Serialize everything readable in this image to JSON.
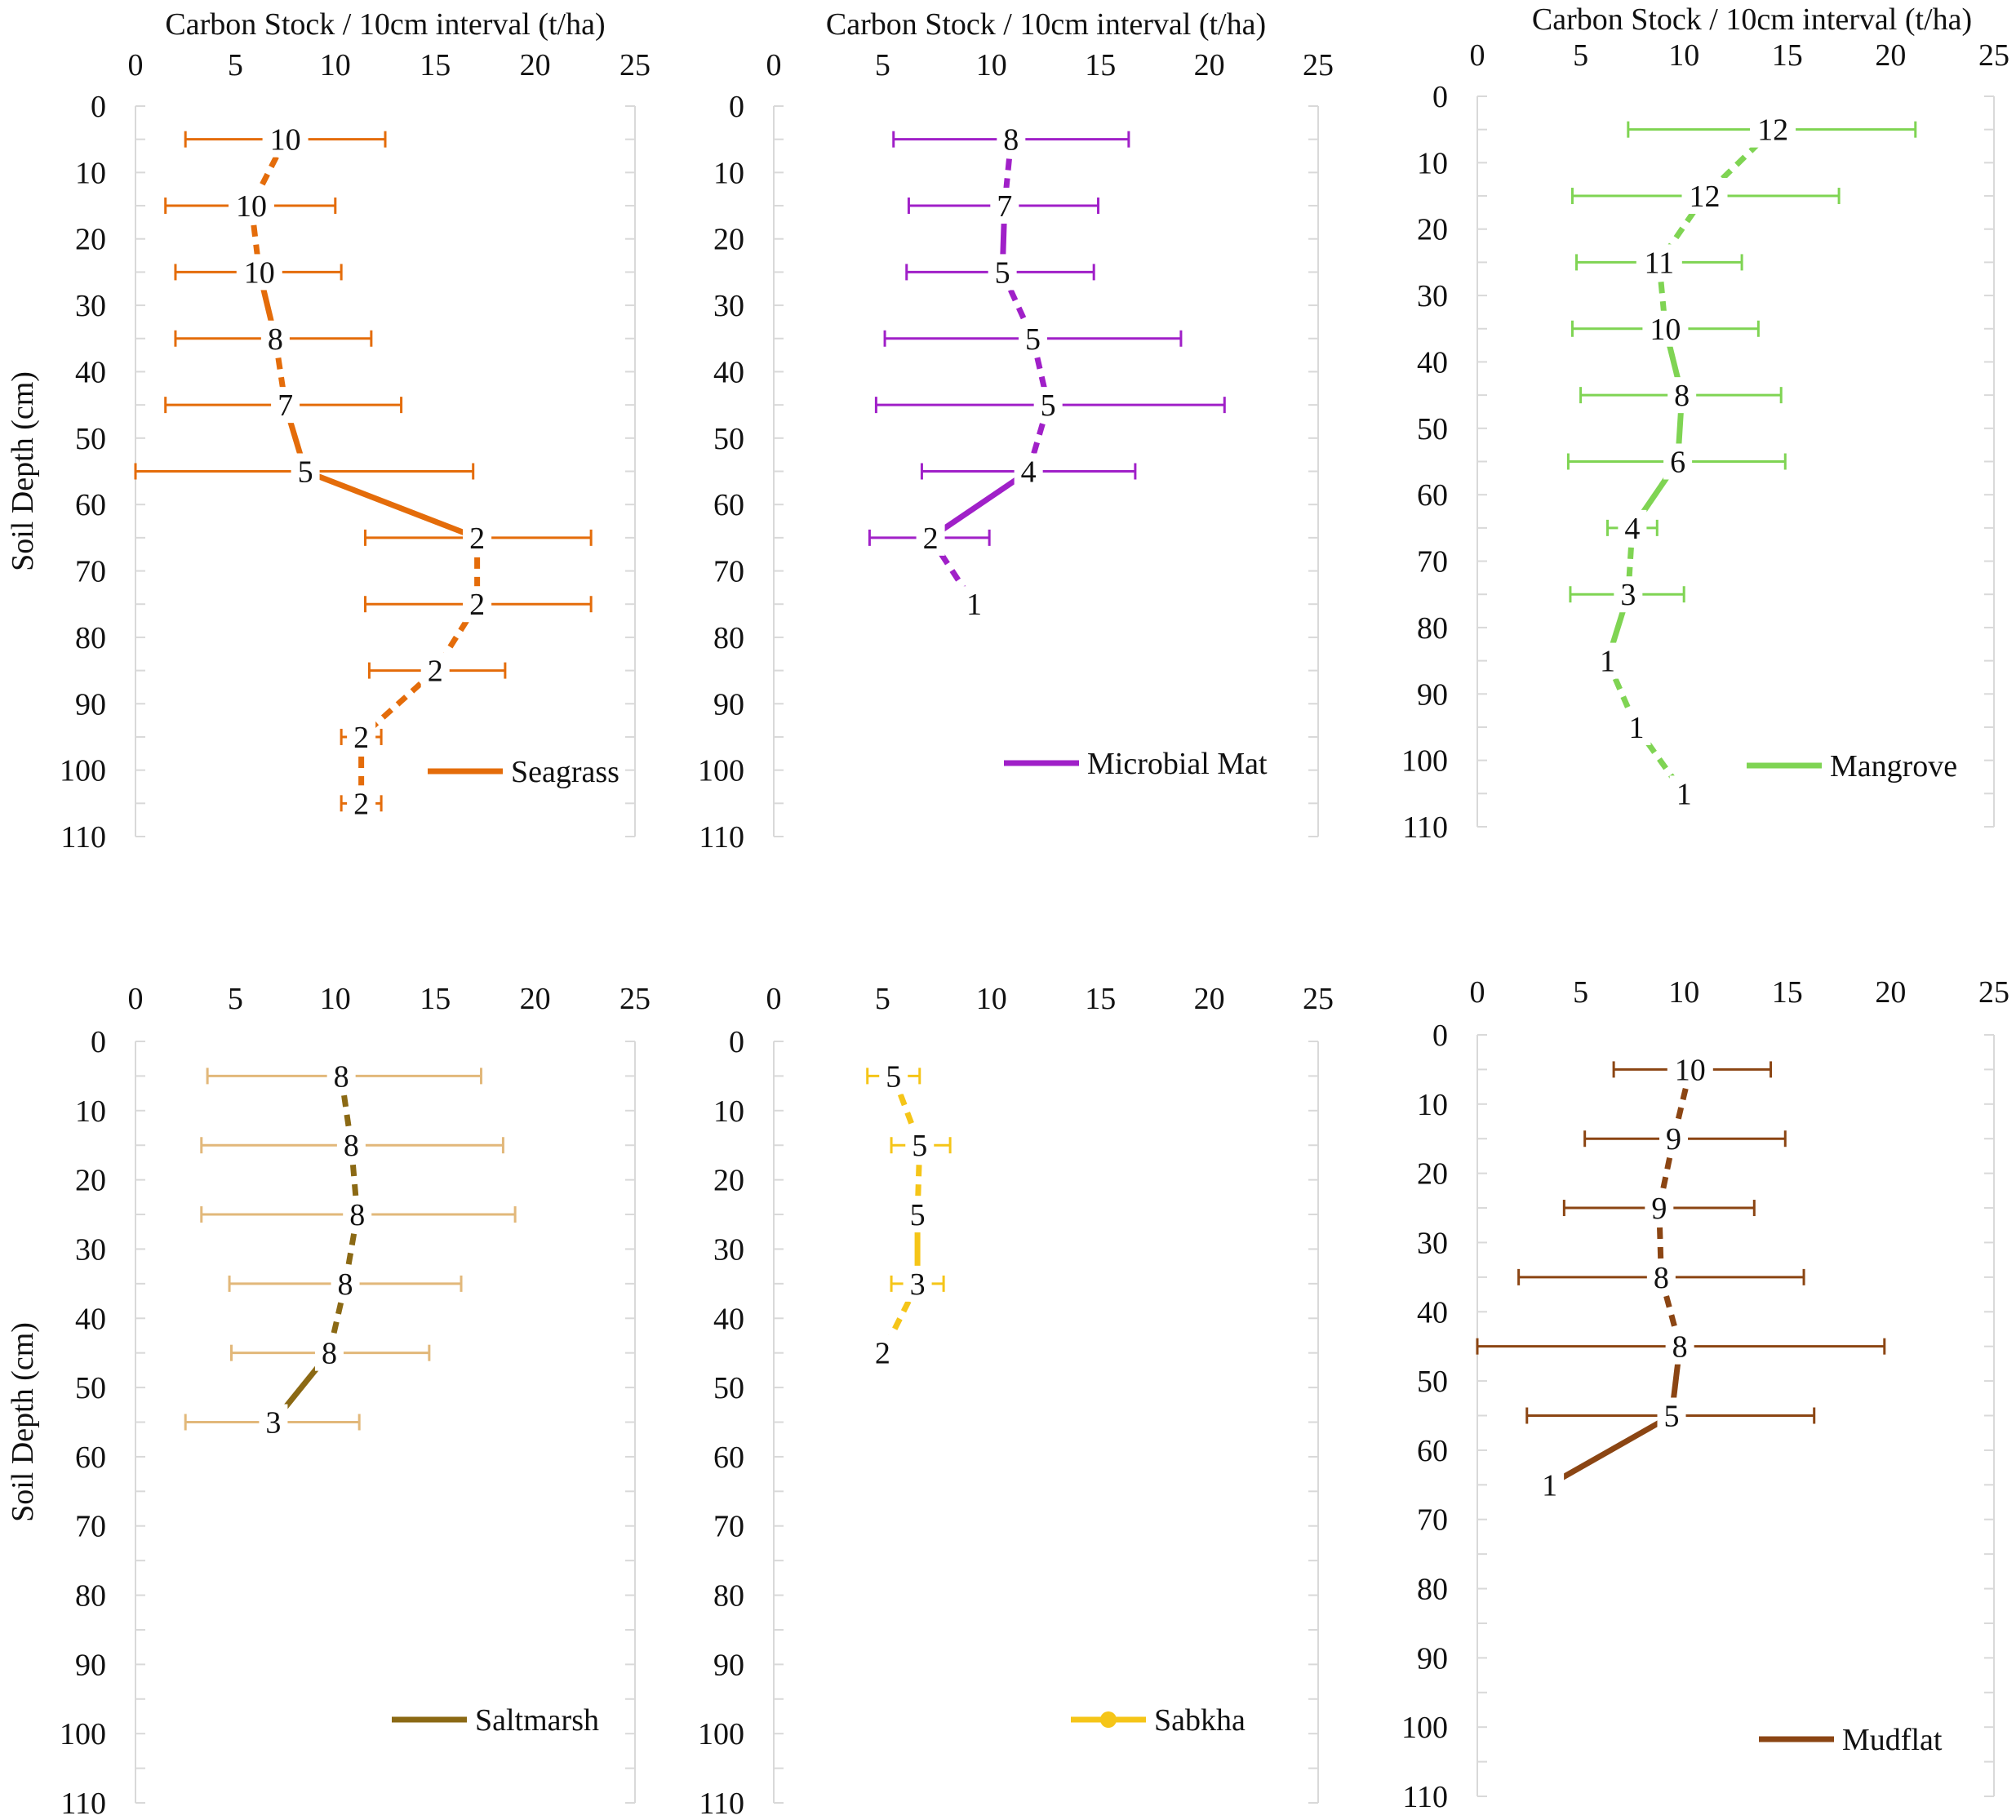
{
  "chart_data": [
    {
      "type": "line",
      "panel": "top-left",
      "title": "",
      "xlabel": "Carbon Stock / 10cm interval (t/ha)",
      "ylabel": "Soil Depth (cm)",
      "xlim": [
        0,
        25
      ],
      "ylim": [
        0,
        110
      ],
      "xticks": [
        "0",
        "5",
        "10",
        "15",
        "20",
        "25"
      ],
      "yticks": [
        "0",
        "10",
        "20",
        "30",
        "40",
        "50",
        "60",
        "70",
        "80",
        "90",
        "100",
        "110"
      ],
      "legend": {
        "label": "Seagrass",
        "position": "bottom-right"
      },
      "color": "#E46C0A",
      "points": [
        {
          "depth": 5,
          "value": 7.5,
          "err_low": 2.5,
          "err_high": 12.5,
          "n": "10"
        },
        {
          "depth": 15,
          "value": 5.8,
          "err_low": 1.5,
          "err_high": 10.0,
          "n": "10"
        },
        {
          "depth": 25,
          "value": 6.2,
          "err_low": 2.0,
          "err_high": 10.3,
          "n": "10"
        },
        {
          "depth": 35,
          "value": 7.0,
          "err_low": 2.0,
          "err_high": 11.8,
          "n": "8"
        },
        {
          "depth": 45,
          "value": 7.5,
          "err_low": 1.5,
          "err_high": 13.3,
          "n": "7"
        },
        {
          "depth": 55,
          "value": 8.5,
          "err_low": 0.0,
          "err_high": 16.9,
          "n": "5"
        },
        {
          "depth": 65,
          "value": 17.1,
          "err_low": 11.5,
          "err_high": 22.8,
          "n": "2"
        },
        {
          "depth": 75,
          "value": 17.1,
          "err_low": 11.5,
          "err_high": 22.8,
          "n": "2"
        },
        {
          "depth": 85,
          "value": 15.0,
          "err_low": 11.7,
          "err_high": 18.5,
          "n": "2"
        },
        {
          "depth": 95,
          "value": 11.3,
          "err_low": 10.3,
          "err_high": 12.3,
          "n": "2"
        },
        {
          "depth": 105,
          "value": 11.3,
          "err_low": 10.3,
          "err_high": 12.3,
          "n": "2"
        }
      ]
    },
    {
      "type": "line",
      "panel": "top-middle",
      "title": "",
      "xlabel": "Carbon Stock / 10cm interval (t/ha)",
      "ylabel": "",
      "xlim": [
        0,
        25
      ],
      "ylim": [
        0,
        110
      ],
      "xticks": [
        "0",
        "5",
        "10",
        "15",
        "20",
        "25"
      ],
      "yticks": [
        "0",
        "10",
        "20",
        "30",
        "40",
        "50",
        "60",
        "70",
        "80",
        "90",
        "100",
        "110"
      ],
      "legend": {
        "label": "Microbial Mat",
        "position": "bottom-right"
      },
      "color": "#A020C8",
      "points": [
        {
          "depth": 5,
          "value": 10.9,
          "err_low": 5.5,
          "err_high": 16.3,
          "n": "8"
        },
        {
          "depth": 15,
          "value": 10.6,
          "err_low": 6.2,
          "err_high": 14.9,
          "n": "7"
        },
        {
          "depth": 25,
          "value": 10.5,
          "err_low": 6.1,
          "err_high": 14.7,
          "n": "5"
        },
        {
          "depth": 35,
          "value": 11.9,
          "err_low": 5.1,
          "err_high": 18.7,
          "n": "5"
        },
        {
          "depth": 45,
          "value": 12.6,
          "err_low": 4.7,
          "err_high": 20.7,
          "n": "5"
        },
        {
          "depth": 55,
          "value": 11.7,
          "err_low": 6.8,
          "err_high": 16.6,
          "n": "4"
        },
        {
          "depth": 65,
          "value": 7.2,
          "err_low": 4.4,
          "err_high": 9.9,
          "n": "2"
        },
        {
          "depth": 75,
          "value": 9.2,
          "n": "1"
        }
      ]
    },
    {
      "type": "line",
      "panel": "top-right",
      "title": "",
      "xlabel": "Carbon Stock / 10cm interval (t/ha)",
      "ylabel": "",
      "xlim": [
        0,
        25
      ],
      "ylim": [
        0,
        110
      ],
      "xticks": [
        "0",
        "5",
        "10",
        "15",
        "20",
        "25"
      ],
      "yticks": [
        "0",
        "10",
        "20",
        "30",
        "40",
        "50",
        "60",
        "70",
        "80",
        "90",
        "100",
        "110"
      ],
      "legend": {
        "label": "Mangrove",
        "position": "bottom-right"
      },
      "color": "#7FD453",
      "points": [
        {
          "depth": 5,
          "value": 14.3,
          "err_low": 7.3,
          "err_high": 21.2,
          "n": "12"
        },
        {
          "depth": 15,
          "value": 11.0,
          "err_low": 4.6,
          "err_high": 17.5,
          "n": "12"
        },
        {
          "depth": 25,
          "value": 8.8,
          "err_low": 4.8,
          "err_high": 12.8,
          "n": "11"
        },
        {
          "depth": 35,
          "value": 9.1,
          "err_low": 4.6,
          "err_high": 13.6,
          "n": "10"
        },
        {
          "depth": 45,
          "value": 9.9,
          "err_low": 5.0,
          "err_high": 14.7,
          "n": "8"
        },
        {
          "depth": 55,
          "value": 9.7,
          "err_low": 4.4,
          "err_high": 14.9,
          "n": "6"
        },
        {
          "depth": 65,
          "value": 7.5,
          "err_low": 6.3,
          "err_high": 8.7,
          "n": "4"
        },
        {
          "depth": 75,
          "value": 7.3,
          "err_low": 4.5,
          "err_high": 10.0,
          "n": "3"
        },
        {
          "depth": 85,
          "value": 6.3,
          "n": "1"
        },
        {
          "depth": 95,
          "value": 7.7,
          "n": "1"
        },
        {
          "depth": 105,
          "value": 10.0,
          "n": "1"
        }
      ]
    },
    {
      "type": "line",
      "panel": "bottom-left",
      "title": "",
      "xlabel": "",
      "ylabel": "Soil Depth (cm)",
      "xlim": [
        0,
        25
      ],
      "ylim": [
        0,
        110
      ],
      "xticks": [
        "0",
        "5",
        "10",
        "15",
        "20",
        "25"
      ],
      "yticks": [
        "0",
        "10",
        "20",
        "30",
        "40",
        "50",
        "60",
        "70",
        "80",
        "90",
        "100",
        "110"
      ],
      "legend": {
        "label": "Saltmarsh",
        "position": "bottom-right"
      },
      "color": "#8B6914",
      "errColor": "#E2B87A",
      "points": [
        {
          "depth": 5,
          "value": 10.3,
          "err_low": 3.6,
          "err_high": 17.3,
          "n": "8"
        },
        {
          "depth": 15,
          "value": 10.8,
          "err_low": 3.3,
          "err_high": 18.4,
          "n": "8"
        },
        {
          "depth": 25,
          "value": 11.1,
          "err_low": 3.3,
          "err_high": 19.0,
          "n": "8"
        },
        {
          "depth": 35,
          "value": 10.5,
          "err_low": 4.7,
          "err_high": 16.3,
          "n": "8"
        },
        {
          "depth": 45,
          "value": 9.7,
          "err_low": 4.8,
          "err_high": 14.7,
          "n": "8"
        },
        {
          "depth": 55,
          "value": 6.9,
          "err_low": 2.5,
          "err_high": 11.2,
          "n": "3"
        }
      ]
    },
    {
      "type": "line",
      "panel": "bottom-middle",
      "title": "",
      "xlabel": "",
      "ylabel": "",
      "xlim": [
        0,
        25
      ],
      "ylim": [
        0,
        110
      ],
      "xticks": [
        "0",
        "5",
        "10",
        "15",
        "20",
        "25"
      ],
      "yticks": [
        "0",
        "10",
        "20",
        "30",
        "40",
        "50",
        "60",
        "70",
        "80",
        "90",
        "100",
        "110"
      ],
      "legend": {
        "label": "Sabkha",
        "position": "bottom-right"
      },
      "color": "#F5C518",
      "points": [
        {
          "depth": 5,
          "value": 5.5,
          "err_low": 4.3,
          "err_high": 6.7,
          "n": "5"
        },
        {
          "depth": 15,
          "value": 6.7,
          "err_low": 5.4,
          "err_high": 8.1,
          "n": "5"
        },
        {
          "depth": 25,
          "value": 6.6,
          "n": "5"
        },
        {
          "depth": 35,
          "value": 6.6,
          "err_low": 5.4,
          "err_high": 7.8,
          "n": "3"
        },
        {
          "depth": 45,
          "value": 5.0,
          "n": "2"
        }
      ]
    },
    {
      "type": "line",
      "panel": "bottom-right",
      "title": "",
      "xlabel": "",
      "ylabel": "",
      "xlim": [
        0,
        25
      ],
      "ylim": [
        0,
        110
      ],
      "xticks": [
        "0",
        "5",
        "10",
        "15",
        "20",
        "25"
      ],
      "yticks": [
        "0",
        "10",
        "20",
        "30",
        "40",
        "50",
        "60",
        "70",
        "80",
        "90",
        "100",
        "110"
      ],
      "legend": {
        "label": "Mudflat",
        "position": "bottom-right"
      },
      "color": "#8B4513",
      "points": [
        {
          "depth": 5,
          "value": 10.3,
          "err_low": 6.6,
          "err_high": 14.2,
          "n": "10"
        },
        {
          "depth": 15,
          "value": 9.5,
          "err_low": 5.2,
          "err_high": 14.9,
          "n": "9"
        },
        {
          "depth": 25,
          "value": 8.8,
          "err_low": 4.2,
          "err_high": 13.4,
          "n": "9"
        },
        {
          "depth": 35,
          "value": 8.9,
          "err_low": 2.0,
          "err_high": 15.8,
          "n": "8"
        },
        {
          "depth": 45,
          "value": 9.8,
          "err_low": 0.0,
          "err_high": 19.7,
          "n": "8"
        },
        {
          "depth": 55,
          "value": 9.4,
          "err_low": 2.4,
          "err_high": 16.3,
          "n": "5"
        },
        {
          "depth": 65,
          "value": 3.5,
          "n": "1"
        }
      ]
    }
  ]
}
